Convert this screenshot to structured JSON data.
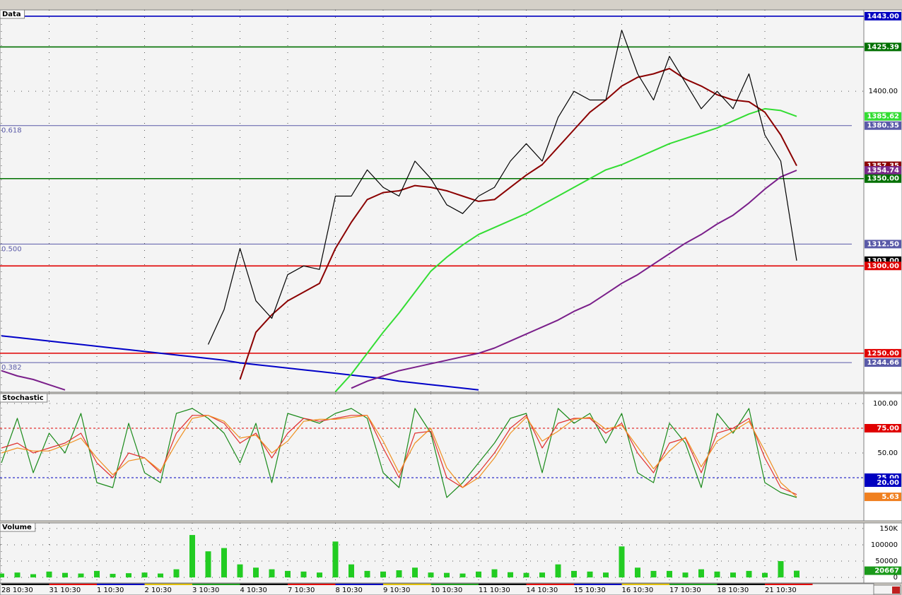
{
  "chart_data": [
    {
      "type": "line",
      "title": "Data",
      "ylim": [
        1227.7,
        1446.6
      ],
      "yticks": [
        {
          "value": 1400,
          "label": "1400.00"
        }
      ],
      "levels": [
        {
          "value": 1443,
          "label": "1443.00",
          "color": "#0000c0",
          "line": true
        },
        {
          "value": 1425.39,
          "label": "1425.39",
          "color": "#007000",
          "line": true
        },
        {
          "value": 1385.62,
          "label": "1385.62",
          "color": "#33dd33",
          "line": false
        },
        {
          "value": 1380.35,
          "label": "1380.35",
          "color": "#5a5aa8",
          "line": true,
          "fib": "0.618"
        },
        {
          "value": 1357.35,
          "label": "1357.35",
          "color": "#8b0000",
          "line": false
        },
        {
          "value": 1354.74,
          "label": "1354.74",
          "color": "#7a2a8a",
          "line": false
        },
        {
          "value": 1350,
          "label": "1350.00",
          "color": "#007000",
          "line": true
        },
        {
          "value": 1312.5,
          "label": "1312.50",
          "color": "#5a5aa8",
          "line": true,
          "fib": "0.500"
        },
        {
          "value": 1303,
          "label": "1303.00",
          "color": "#000000",
          "line": false
        },
        {
          "value": 1300,
          "label": "1300.00",
          "color": "#e00000",
          "line": true
        },
        {
          "value": 1250,
          "label": "1250.00",
          "color": "#e00000",
          "line": true
        },
        {
          "value": 1244.66,
          "label": "1244.66",
          "color": "#5a5aa8",
          "line": true,
          "fib": "0.382"
        }
      ],
      "series": [
        {
          "color": "#0000c8",
          "values": [
            1260,
            1259,
            1258,
            1257,
            1256,
            1255,
            1254,
            1253,
            1252,
            1251,
            1250,
            1249,
            1248,
            1247,
            1246,
            1244.5,
            1243.5,
            1242.5,
            1241.5,
            1240.5,
            1239.5,
            1238.5,
            1237.5,
            1236.5,
            1235.5,
            1234,
            1233,
            1232,
            1231,
            1230,
            1229,
            null,
            null,
            null,
            null,
            null,
            null,
            null,
            null,
            null,
            null,
            null,
            null,
            null,
            null,
            null,
            null,
            null,
            null,
            null,
            null
          ]
        },
        {
          "color": "#7a1f8a",
          "values": [
            1240,
            1237,
            1235,
            1232,
            1229,
            null,
            null,
            null,
            null,
            null,
            null,
            null,
            null,
            null,
            null,
            null,
            null,
            null,
            null,
            null,
            null,
            null,
            1230,
            1234,
            1237,
            1240,
            1242,
            1244,
            1246,
            1248,
            1250,
            1253,
            1257,
            1261,
            1265,
            1269,
            1274,
            1278,
            1284,
            1290,
            1295,
            1301,
            1307,
            1313,
            1318,
            1324,
            1329,
            1336,
            1344,
            1351,
            1354.74
          ]
        },
        {
          "color": "#33dd33",
          "values": [
            null,
            null,
            null,
            null,
            null,
            null,
            null,
            null,
            null,
            null,
            null,
            null,
            null,
            null,
            null,
            null,
            null,
            null,
            null,
            null,
            null,
            1228,
            1238,
            1250,
            1262,
            1273,
            1285,
            1297,
            1305,
            1312,
            1318,
            1322,
            1326,
            1330,
            1335,
            1340,
            1345,
            1350,
            1355,
            1358,
            1362,
            1366,
            1370,
            1373,
            1376,
            1379,
            1383,
            1387,
            1390,
            1389,
            1385.62
          ]
        },
        {
          "color": "#8b0000",
          "values": [
            null,
            null,
            null,
            null,
            null,
            null,
            null,
            null,
            null,
            null,
            null,
            null,
            null,
            null,
            null,
            1235,
            1262,
            1272,
            1280,
            1285,
            1290,
            1310,
            1325,
            1338,
            1342,
            1343,
            1346,
            1345,
            1343,
            1340,
            1337,
            1338,
            1345,
            1352,
            1358,
            1368,
            1378,
            1388,
            1395,
            1403,
            1408,
            1410,
            1413,
            1407,
            1403,
            1398,
            1395,
            1394,
            1388,
            1375,
            1357.35
          ]
        },
        {
          "color": "#000000",
          "values": [
            null,
            null,
            null,
            null,
            null,
            null,
            null,
            null,
            null,
            null,
            null,
            null,
            null,
            1255,
            1275,
            1310,
            1280,
            1270,
            1295,
            1300,
            1298,
            1340,
            1340,
            1355,
            1345,
            1340,
            1360,
            1350,
            1335,
            1330,
            1340,
            1345,
            1360,
            1370,
            1360,
            1385,
            1400,
            1395,
            1395,
            1435,
            1410,
            1395,
            1420,
            1405,
            1390,
            1400,
            1390,
            1410,
            1375,
            1360,
            1303
          ]
        }
      ]
    },
    {
      "type": "line",
      "title": "Stochastic",
      "ylim": [
        -18.6,
        110
      ],
      "yticks": [
        {
          "value": 100,
          "label": "100.00"
        },
        {
          "value": 50,
          "label": "50.00"
        }
      ],
      "levels": [
        {
          "value": 75,
          "label": "75.00",
          "color": "#e00000",
          "line": true
        },
        {
          "value": 25,
          "label": "25.00",
          "color": "#0000c0",
          "line": true
        },
        {
          "value": 20,
          "label": "20.00",
          "color": "#0000c0",
          "line": false
        },
        {
          "value": 5.63,
          "label": "5.63",
          "color": "#f08020",
          "line": false
        }
      ],
      "series": [
        {
          "color": "#1a8a1a",
          "values": [
            40,
            85,
            30,
            70,
            50,
            90,
            20,
            15,
            80,
            30,
            20,
            90,
            95,
            85,
            70,
            40,
            80,
            20,
            90,
            85,
            80,
            90,
            95,
            85,
            30,
            15,
            95,
            70,
            5,
            20,
            40,
            60,
            85,
            90,
            30,
            95,
            80,
            90,
            60,
            90,
            30,
            20,
            80,
            60,
            15,
            90,
            70,
            95,
            20,
            10,
            5
          ]
        },
        {
          "color": "#e03030",
          "values": [
            55,
            60,
            50,
            55,
            60,
            70,
            40,
            25,
            50,
            45,
            30,
            70,
            88,
            88,
            80,
            60,
            70,
            45,
            70,
            85,
            82,
            85,
            88,
            88,
            55,
            25,
            70,
            72,
            25,
            15,
            30,
            50,
            75,
            88,
            55,
            80,
            85,
            85,
            70,
            80,
            50,
            30,
            60,
            65,
            30,
            70,
            75,
            85,
            45,
            15,
            8
          ]
        },
        {
          "color": "#f09020",
          "values": [
            50,
            55,
            52,
            52,
            58,
            65,
            45,
            28,
            42,
            45,
            32,
            60,
            85,
            88,
            82,
            65,
            68,
            50,
            62,
            82,
            84,
            84,
            86,
            88,
            62,
            30,
            60,
            75,
            35,
            15,
            25,
            45,
            70,
            86,
            62,
            72,
            84,
            86,
            74,
            78,
            56,
            34,
            52,
            66,
            36,
            62,
            72,
            82,
            52,
            20,
            5.63
          ]
        }
      ]
    },
    {
      "type": "bar",
      "title": "Volume",
      "ylim": [
        -17000,
        167000
      ],
      "yticks": [
        {
          "value": 150000,
          "label": "150K"
        },
        100000,
        50000,
        0
      ],
      "color": "#22cc22",
      "last_label": "20667",
      "categories": [
        "28 10:30",
        null,
        null,
        "31 10:30",
        null,
        null,
        "1 10:30",
        null,
        null,
        "2 10:30",
        null,
        null,
        "3 10:30",
        null,
        null,
        "4 10:30",
        null,
        null,
        "7 10:30",
        null,
        null,
        "8 10:30",
        null,
        null,
        "9 10:30",
        null,
        null,
        "10 10:30",
        null,
        null,
        "11 10:30",
        null,
        null,
        "14 10:30",
        null,
        null,
        "15 10:30",
        null,
        null,
        "16 10:30",
        null,
        null,
        "17 10:30",
        null,
        null,
        "18 10:30",
        null,
        null,
        "21 10:30",
        null,
        null
      ],
      "values": [
        12000,
        15000,
        10000,
        18000,
        14000,
        12000,
        20000,
        11000,
        13000,
        15000,
        12000,
        25000,
        130000,
        80000,
        90000,
        40000,
        30000,
        25000,
        20000,
        18000,
        15000,
        110000,
        40000,
        20000,
        18000,
        22000,
        30000,
        15000,
        14000,
        12000,
        18000,
        25000,
        16000,
        14000,
        15000,
        40000,
        20000,
        18000,
        15000,
        95000,
        30000,
        20000,
        20000,
        15000,
        25000,
        18000,
        15000,
        20000,
        14000,
        50000,
        20667
      ]
    }
  ]
}
